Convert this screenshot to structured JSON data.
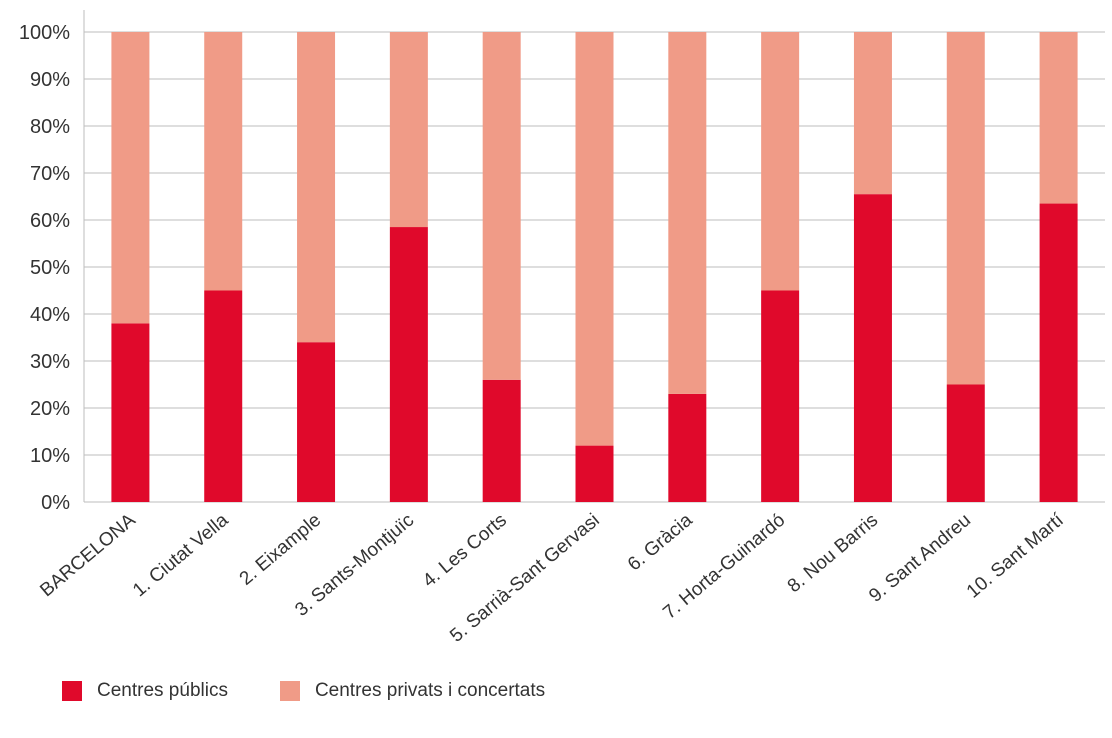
{
  "chart_data": {
    "type": "bar",
    "stacked": true,
    "categories": [
      "BARCELONA",
      "1. Ciutat Vella",
      "2. Eixample",
      "3. Sants-Montjuïc",
      "4. Les Corts",
      "5. Sarrià-Sant Gervasi",
      "6. Gràcia",
      "7. Horta-Guinardó",
      "8. Nou Barris",
      "9. Sant Andreu",
      "10. Sant Martí"
    ],
    "series": [
      {
        "name": "Centres públics",
        "color": "#e0092b",
        "values": [
          38,
          45,
          34,
          58.5,
          26,
          12,
          23,
          45,
          65.5,
          25,
          63.5
        ]
      },
      {
        "name": "Centres privats i concertats",
        "color": "#f09b87",
        "values": [
          62,
          55,
          66,
          41.5,
          74,
          88,
          77,
          55,
          34.5,
          75,
          36.5
        ]
      }
    ],
    "yticks": [
      "0%",
      "10%",
      "20%",
      "30%",
      "40%",
      "50%",
      "60%",
      "70%",
      "80%",
      "90%",
      "100%"
    ],
    "ylim": [
      0,
      100
    ],
    "grid": true,
    "legend_position": "bottom-left"
  }
}
